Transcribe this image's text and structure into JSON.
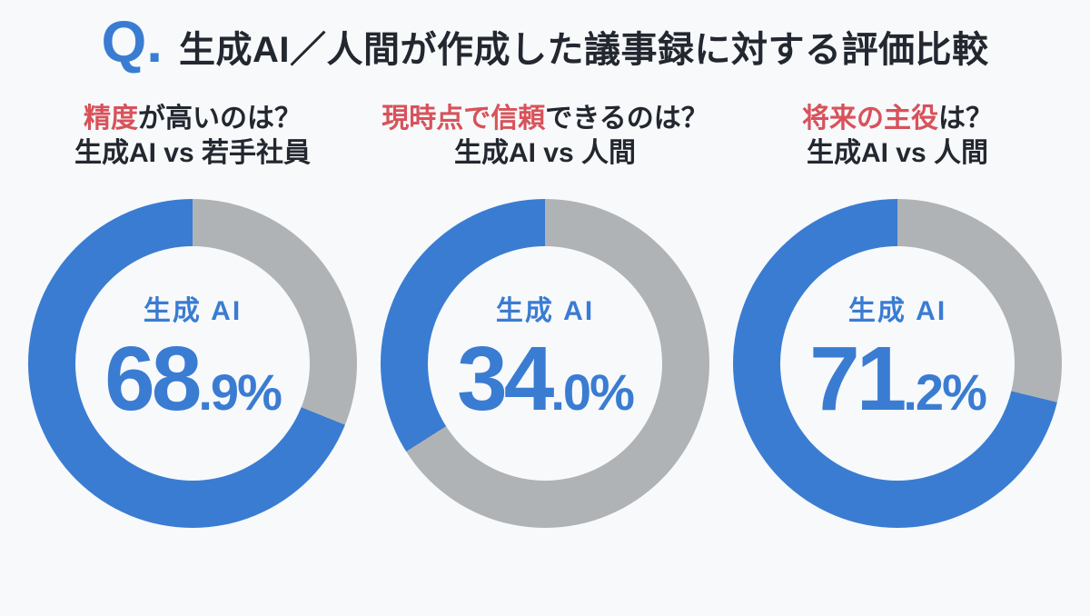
{
  "colors": {
    "ai": "#3a7cd2",
    "other": "#b0b3b6",
    "highlight": "#d8525a",
    "text": "#23272f",
    "background": "#f7f9fb"
  },
  "header": {
    "q_mark": "Q.",
    "title": "生成AI／人間が作成した議事録に対する評価比較"
  },
  "chart_data": [
    {
      "type": "pie",
      "question_highlight": "精度",
      "question_rest": "が高いのは？",
      "subtitle": "生成AI vs 若手社員",
      "center_label": "生成 AI",
      "value_main": "68",
      "value_sub": ".9%",
      "categories": [
        "生成AI",
        "若手社員"
      ],
      "values": [
        68.9,
        31.1
      ],
      "legend_position": "none"
    },
    {
      "type": "pie",
      "question_highlight": "現時点で信頼",
      "question_rest": "できるのは？",
      "subtitle": "生成AI vs 人間",
      "center_label": "生成 AI",
      "value_main": "34",
      "value_sub": ".0%",
      "categories": [
        "生成AI",
        "人間"
      ],
      "values": [
        34.0,
        66.0
      ],
      "legend_position": "none"
    },
    {
      "type": "pie",
      "question_highlight": "将来の主役",
      "question_rest": "は？",
      "subtitle": "生成AI vs 人間",
      "center_label": "生成 AI",
      "value_main": "71",
      "value_sub": ".2%",
      "categories": [
        "生成AI",
        "人間"
      ],
      "values": [
        71.2,
        28.8
      ],
      "legend_position": "none"
    }
  ]
}
